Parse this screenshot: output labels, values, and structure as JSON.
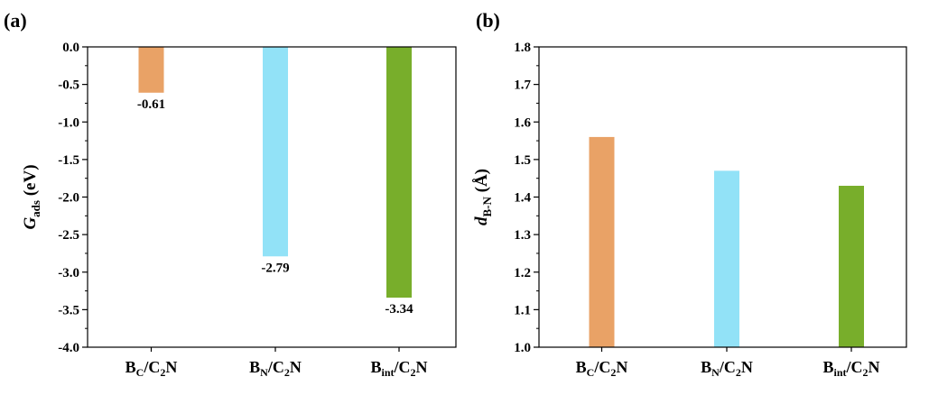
{
  "colors": {
    "orange": "#E9A266",
    "lightblue": "#92E2F7",
    "green": "#78AE2B"
  },
  "chart_data": [
    {
      "type": "bar",
      "panel_label": "(a)",
      "categories": [
        {
          "main": "B",
          "sub": "C",
          "suffix": "/C",
          "sub2": "2",
          "tail": "N"
        },
        {
          "main": "B",
          "sub": "N",
          "suffix": "/C",
          "sub2": "2",
          "tail": "N"
        },
        {
          "main": "B",
          "sub": "int",
          "suffix": "/C",
          "sub2": "2",
          "tail": "N"
        }
      ],
      "values": [
        -0.61,
        -2.79,
        -3.34
      ],
      "data_labels": [
        "-0.61",
        "-2.79",
        "-3.34"
      ],
      "bar_colors": [
        "#E9A266",
        "#92E2F7",
        "#78AE2B"
      ],
      "ylabel": {
        "main": "G",
        "sub": "ads",
        "unit": " (eV)"
      },
      "ylim": [
        -4.0,
        0.0
      ],
      "yticks": [
        "0.0",
        "-0.5",
        "-1.0",
        "-1.5",
        "-2.0",
        "-2.5",
        "-3.0",
        "-3.5",
        "-4.0"
      ],
      "grid": false
    },
    {
      "type": "bar",
      "panel_label": "(b)",
      "categories": [
        {
          "main": "B",
          "sub": "C",
          "suffix": "/C",
          "sub2": "2",
          "tail": "N"
        },
        {
          "main": "B",
          "sub": "N",
          "suffix": "/C",
          "sub2": "2",
          "tail": "N"
        },
        {
          "main": "B",
          "sub": "int",
          "suffix": "/C",
          "sub2": "2",
          "tail": "N"
        }
      ],
      "values": [
        1.56,
        1.47,
        1.43
      ],
      "bar_colors": [
        "#E9A266",
        "#92E2F7",
        "#78AE2B"
      ],
      "ylabel": {
        "main": "d",
        "sub": "B-N",
        "unit": " (Å)"
      },
      "ylim": [
        1.0,
        1.8
      ],
      "yticks": [
        "1.8",
        "1.7",
        "1.6",
        "1.5",
        "1.4",
        "1.3",
        "1.2",
        "1.1",
        "1.0"
      ],
      "grid": false
    }
  ]
}
